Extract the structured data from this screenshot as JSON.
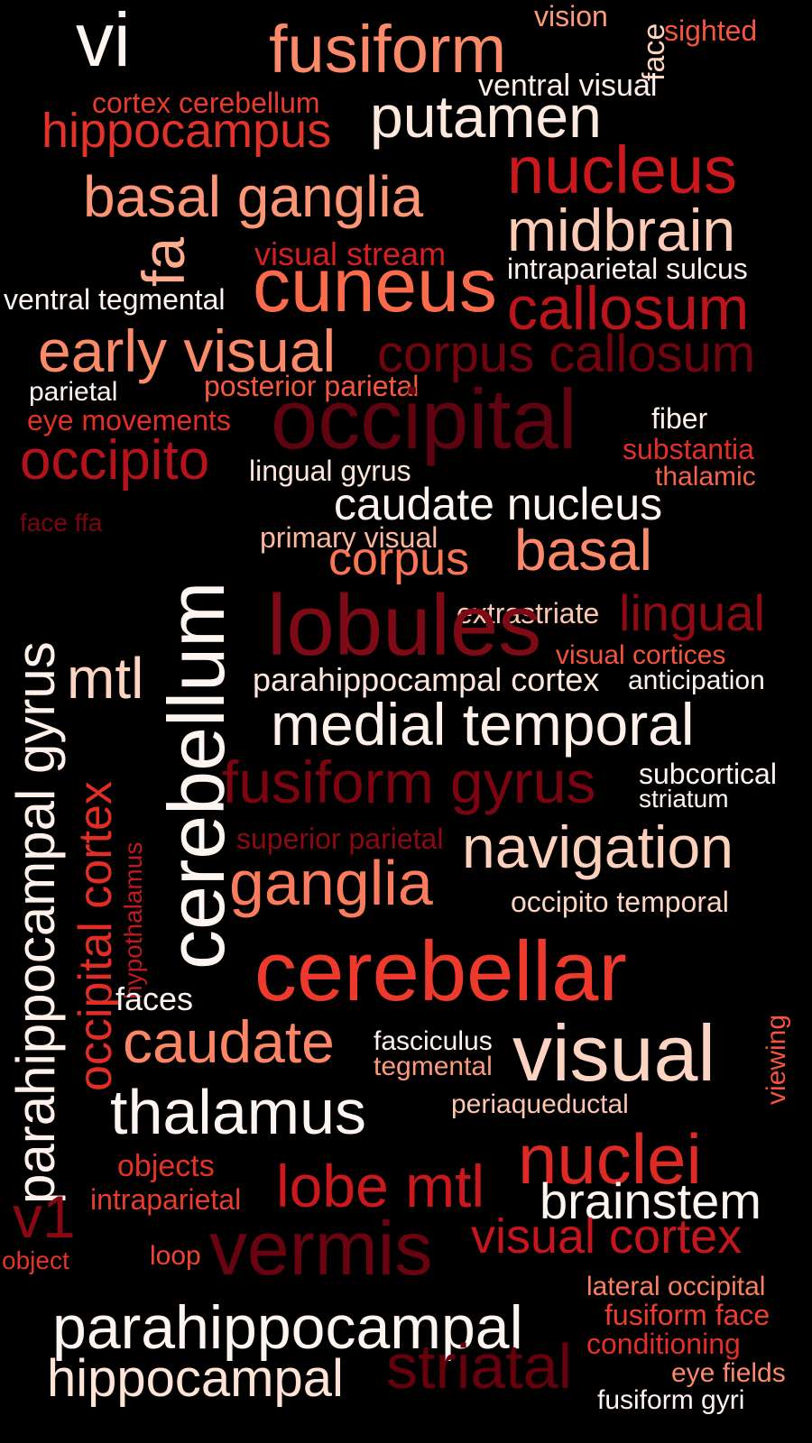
{
  "words": [
    {
      "text": "vi",
      "color": "#fff5f0"
    },
    {
      "text": "fusiform",
      "color": "#fb8a69"
    },
    {
      "text": "vision",
      "color": "#fc9b7c"
    },
    {
      "text": "face",
      "color": "#fdd2bf"
    },
    {
      "text": "sighted",
      "color": "#f5553c"
    },
    {
      "text": "ventral visual",
      "color": "#fff0e9"
    },
    {
      "text": "cortex cerebellum",
      "color": "#e83a2d"
    },
    {
      "text": "hippocampus",
      "color": "#e2332b"
    },
    {
      "text": "putamen",
      "color": "#fee9df"
    },
    {
      "text": "nucleus",
      "color": "#cb181d"
    },
    {
      "text": "basal ganglia",
      "color": "#fc9677"
    },
    {
      "text": "midbrain",
      "color": "#fdcbb6"
    },
    {
      "text": "fa",
      "color": "#fcab8f"
    },
    {
      "text": "visual stream",
      "color": "#d42020"
    },
    {
      "text": "intraparietal sulcus",
      "color": "#fff2ec"
    },
    {
      "text": "ventral tegmental",
      "color": "#fff5f0"
    },
    {
      "text": "cuneus",
      "color": "#fb6a4a"
    },
    {
      "text": "callosum",
      "color": "#bb141a"
    },
    {
      "text": "early visual",
      "color": "#fb8a69"
    },
    {
      "text": "corpus callosum",
      "color": "#71040f"
    },
    {
      "text": "parietal",
      "color": "#fff5f0"
    },
    {
      "text": "posterior parietal",
      "color": "#f6583e"
    },
    {
      "text": "occipital",
      "color": "#5f0310"
    },
    {
      "text": "fiber",
      "color": "#fff0e8"
    },
    {
      "text": "eye movements",
      "color": "#e32f27"
    },
    {
      "text": "substantia",
      "color": "#e32f27"
    },
    {
      "text": "occipito",
      "color": "#b5121b"
    },
    {
      "text": "lingual gyrus",
      "color": "#fee5d9"
    },
    {
      "text": "thalamic",
      "color": "#f5644a"
    },
    {
      "text": "caudate nucleus",
      "color": "#fff5f0"
    },
    {
      "text": "face ffa",
      "color": "#7a0510"
    },
    {
      "text": "primary visual",
      "color": "#fcb79d"
    },
    {
      "text": "basal",
      "color": "#fc8a6a"
    },
    {
      "text": "corpus",
      "color": "#fb7555"
    },
    {
      "text": "parahippocampal gyrus",
      "color": "#fff1ea"
    },
    {
      "text": "cerebellum",
      "color": "#fff5f0"
    },
    {
      "text": "extrastriate",
      "color": "#fdc6b0"
    },
    {
      "text": "lingual",
      "color": "#8f0a13"
    },
    {
      "text": "lobules",
      "color": "#7d0a14"
    },
    {
      "text": "visual cortices",
      "color": "#f5533b"
    },
    {
      "text": "mtl",
      "color": "#fdd4c2"
    },
    {
      "text": "parahippocampal cortex",
      "color": "#fee6da"
    },
    {
      "text": "anticipation",
      "color": "#fff5f0"
    },
    {
      "text": "occipital cortex",
      "color": "#e12d26"
    },
    {
      "text": "medial temporal",
      "color": "#fff0e9"
    },
    {
      "text": "fusiform gyrus",
      "color": "#7b0410"
    },
    {
      "text": "subcortical",
      "color": "#fff5f0"
    },
    {
      "text": "striatum",
      "color": "#fff5f0"
    },
    {
      "text": "superior parietal",
      "color": "#8b0a12"
    },
    {
      "text": "hypothalamus",
      "color": "#c01a1e"
    },
    {
      "text": "navigation",
      "color": "#fdd0bc"
    },
    {
      "text": "ganglia",
      "color": "#fb7c5c"
    },
    {
      "text": "occipito temporal",
      "color": "#fdd4c2"
    },
    {
      "text": "cerebellar",
      "color": "#ee3a2c"
    },
    {
      "text": "faces",
      "color": "#fff5f0"
    },
    {
      "text": "viewing",
      "color": "#f5553c"
    },
    {
      "text": "caudate",
      "color": "#fc8565"
    },
    {
      "text": "fasciculus",
      "color": "#fff5f0"
    },
    {
      "text": "tegmental",
      "color": "#fc9b7c"
    },
    {
      "text": "visual",
      "color": "#fdd4c2"
    },
    {
      "text": "periaqueductal",
      "color": "#fdc6b0"
    },
    {
      "text": "thalamus",
      "color": "#fff5f0"
    },
    {
      "text": "nuclei",
      "color": "#dd2a25"
    },
    {
      "text": "objects",
      "color": "#e53228"
    },
    {
      "text": "lobe mtl",
      "color": "#cb181d"
    },
    {
      "text": "intraparietal",
      "color": "#e93c2e"
    },
    {
      "text": "brainstem",
      "color": "#fff5f0"
    },
    {
      "text": "v1",
      "color": "#8a0812"
    },
    {
      "text": "vermis",
      "color": "#6a0310"
    },
    {
      "text": "visual cortex",
      "color": "#c4161c"
    },
    {
      "text": "object",
      "color": "#e63328"
    },
    {
      "text": "loop",
      "color": "#f14432"
    },
    {
      "text": "lateral occipital",
      "color": "#fb8060"
    },
    {
      "text": "parahippocampal",
      "color": "#fff5f0"
    },
    {
      "text": "fusiform face",
      "color": "#ef3c2c"
    },
    {
      "text": "conditioning",
      "color": "#e32f27"
    },
    {
      "text": "striatal",
      "color": "#67000d"
    },
    {
      "text": "hippocampal",
      "color": "#fee3d6"
    },
    {
      "text": "eye fields",
      "color": "#fb8a69"
    },
    {
      "text": "fusiform gyri",
      "color": "#fff5f0"
    }
  ]
}
